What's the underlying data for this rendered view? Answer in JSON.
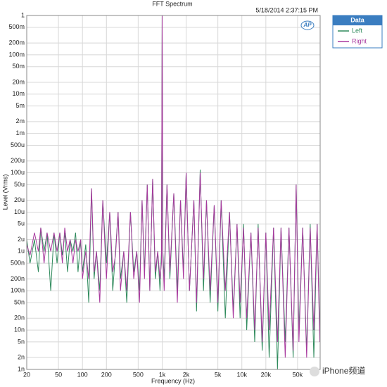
{
  "chart_data": {
    "type": "line",
    "title": "FFT Spectrum",
    "timestamp": "5/18/2014 2:37:15 PM",
    "logo": "AP",
    "watermark": "iPhone频道",
    "x_label": "Frequency (Hz)",
    "y_label": "Level (Vrms)",
    "legend_title": "Data",
    "legend_position": "outside-top-right",
    "xscale": "log",
    "yscale": "log",
    "grid": true,
    "xlim": [
      20,
      96000
    ],
    "ylim": [
      1e-09,
      1
    ],
    "xticks": [
      20,
      50,
      100,
      200,
      500,
      {
        "value": 1000,
        "label": "1k"
      },
      {
        "value": 2000,
        "label": "2k"
      },
      {
        "value": 5000,
        "label": "5k"
      },
      {
        "value": 10000,
        "label": "10k"
      },
      {
        "value": 20000,
        "label": "20k"
      },
      {
        "value": 50000,
        "label": "50k"
      }
    ],
    "yticks": [
      1,
      {
        "value": 0.5,
        "label": "500m"
      },
      {
        "value": 0.2,
        "label": "200m"
      },
      {
        "value": 0.1,
        "label": "100m"
      },
      {
        "value": 0.05,
        "label": "50m"
      },
      {
        "value": 0.02,
        "label": "20m"
      },
      {
        "value": 0.01,
        "label": "10m"
      },
      {
        "value": 0.005,
        "label": "5m"
      },
      {
        "value": 0.002,
        "label": "2m"
      },
      {
        "value": 0.001,
        "label": "1m"
      },
      {
        "value": 0.0005,
        "label": "500u"
      },
      {
        "value": 0.0002,
        "label": "200u"
      },
      {
        "value": 0.0001,
        "label": "100u"
      },
      {
        "value": 5e-05,
        "label": "50u"
      },
      {
        "value": 2e-05,
        "label": "20u"
      },
      {
        "value": 1e-05,
        "label": "10u"
      },
      {
        "value": 5e-06,
        "label": "5u"
      },
      {
        "value": 2e-06,
        "label": "2u"
      },
      {
        "value": 1e-06,
        "label": "1u"
      },
      {
        "value": 5e-07,
        "label": "500n"
      },
      {
        "value": 2e-07,
        "label": "200n"
      },
      {
        "value": 1e-07,
        "label": "100n"
      },
      {
        "value": 5e-08,
        "label": "50n"
      },
      {
        "value": 2e-08,
        "label": "20n"
      },
      {
        "value": 1e-08,
        "label": "10n"
      },
      {
        "value": 5e-09,
        "label": "5n"
      },
      {
        "value": 2e-09,
        "label": "2n"
      },
      {
        "value": 1e-09,
        "label": "1n"
      }
    ],
    "x": [
      20,
      22,
      25,
      28,
      30,
      33,
      36,
      40,
      44,
      48,
      52,
      56,
      60,
      65,
      70,
      76,
      82,
      88,
      95,
      100,
      110,
      120,
      130,
      140,
      150,
      165,
      180,
      200,
      220,
      240,
      260,
      280,
      300,
      330,
      360,
      400,
      440,
      480,
      520,
      560,
      600,
      650,
      700,
      760,
      820,
      880,
      940,
      980,
      1000,
      1020,
      1060,
      1150,
      1250,
      1400,
      1550,
      1700,
      1850,
      2000,
      2200,
      2500,
      2700,
      3000,
      3300,
      3600,
      4000,
      4500,
      5000,
      5500,
      6200,
      7000,
      7800,
      8700,
      9500,
      10500,
      11500,
      13000,
      14500,
      16000,
      18000,
      20000,
      22000,
      25000,
      28000,
      31000,
      35000,
      39000,
      44000,
      48000,
      52000,
      58000,
      65000,
      72000,
      80000,
      88000,
      95000
    ],
    "series": [
      {
        "name": "Left",
        "color": "#2f8a5c",
        "values": [
          2e-06,
          5e-07,
          2e-06,
          3e-07,
          4e-06,
          1e-06,
          3e-06,
          1e-07,
          3e-06,
          5e-07,
          3e-06,
          8e-07,
          3e-06,
          3e-07,
          2e-06,
          1e-06,
          3e-06,
          3e-07,
          2e-06,
          3e-07,
          1.5e-06,
          5e-08,
          4e-05,
          2e-07,
          1e-06,
          1e-07,
          2e-05,
          5e-07,
          1e-05,
          1e-07,
          1e-06,
          1e-05,
          2e-07,
          1e-06,
          5e-08,
          1e-05,
          3e-07,
          1e-06,
          1e-07,
          2e-05,
          3e-07,
          5e-05,
          1e-07,
          7e-05,
          2e-07,
          1e-06,
          1e-07,
          1e-06,
          1,
          1e-06,
          2e-07,
          5e-05,
          2e-07,
          3e-05,
          1e-07,
          2e-05,
          3e-07,
          0.0001,
          1e-07,
          2e-05,
          3e-08,
          0.00012,
          1e-07,
          2e-05,
          5e-08,
          1.5e-05,
          3e-08,
          2e-05,
          2e-08,
          1e-05,
          3e-08,
          5e-06,
          2e-08,
          5e-06,
          1e-08,
          3e-06,
          5e-09,
          5e-06,
          3e-09,
          3e-06,
          2e-09,
          4e-06,
          1e-09,
          4e-06,
          5e-09,
          4e-06,
          2e-09,
          5e-05,
          1e-08,
          4e-06,
          3e-09,
          5e-06,
          2e-09,
          5e-06,
          1e-08
        ]
      },
      {
        "name": "Right",
        "color": "#a8399e",
        "values": [
          1.5e-06,
          8e-07,
          3e-06,
          1e-06,
          4e-06,
          5e-07,
          3e-06,
          1e-06,
          3e-06,
          1e-06,
          3e-06,
          5e-07,
          4e-06,
          1e-06,
          2e-06,
          5e-07,
          2e-06,
          1e-06,
          2e-06,
          2e-07,
          1e-06,
          2e-07,
          4e-05,
          3e-07,
          1e-06,
          5e-08,
          2e-05,
          2e-07,
          1e-05,
          3e-07,
          8e-07,
          1e-05,
          1e-07,
          1e-06,
          1e-07,
          1e-05,
          2e-07,
          1e-06,
          5e-08,
          2e-05,
          2e-07,
          5e-05,
          1e-07,
          7e-05,
          3e-07,
          1e-06,
          2e-07,
          5e-07,
          1,
          8e-07,
          1e-07,
          5e-05,
          3e-07,
          3e-05,
          5e-08,
          2e-05,
          2e-07,
          0.0001,
          1e-07,
          2e-05,
          5e-08,
          0.0001,
          2e-07,
          2e-05,
          1e-07,
          1.5e-05,
          5e-08,
          2e-05,
          1e-07,
          1e-05,
          2e-08,
          5e-06,
          5e-08,
          4e-06,
          2e-08,
          3e-06,
          1e-08,
          4e-06,
          5e-09,
          3e-06,
          1e-08,
          4e-06,
          5e-09,
          4e-06,
          2e-09,
          4e-06,
          3e-09,
          5e-05,
          5e-09,
          4e-06,
          2e-09,
          4e-06,
          1e-08,
          5e-06,
          5e-09
        ]
      }
    ]
  }
}
